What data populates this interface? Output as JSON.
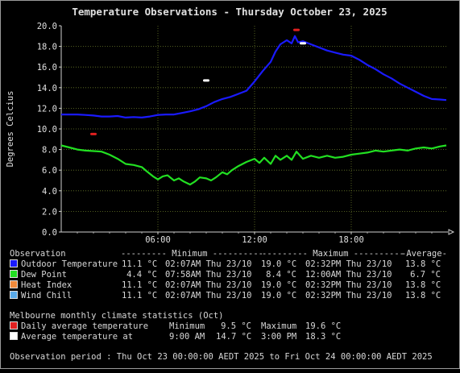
{
  "chart_data": {
    "type": "line",
    "title": "Temperature Observations - Thursday October 23, 2025",
    "ylabel": "Degrees Celcius",
    "xlabel": "",
    "ylim": [
      0,
      20
    ],
    "xlim_hours": [
      0,
      24
    ],
    "yticks": [
      "0.0",
      "2.0",
      "4.0",
      "6.0",
      "8.0",
      "10.0",
      "12.0",
      "14.0",
      "16.0",
      "18.0",
      "20.0"
    ],
    "xticks": [
      {
        "hour": 6,
        "label": "06:00"
      },
      {
        "hour": 12,
        "label": "12:00"
      },
      {
        "hour": 18,
        "label": "18:00"
      }
    ],
    "grid": true,
    "series": [
      {
        "name": "Outdoor Temperature",
        "color": "#1a1aff",
        "points": [
          [
            0,
            11.4
          ],
          [
            1,
            11.4
          ],
          [
            1.5,
            11.35
          ],
          [
            2,
            11.3
          ],
          [
            2.5,
            11.2
          ],
          [
            3,
            11.2
          ],
          [
            3.5,
            11.25
          ],
          [
            4,
            11.1
          ],
          [
            4.5,
            11.15
          ],
          [
            5,
            11.1
          ],
          [
            5.5,
            11.2
          ],
          [
            6,
            11.35
          ],
          [
            6.5,
            11.4
          ],
          [
            7,
            11.4
          ],
          [
            7.5,
            11.55
          ],
          [
            8,
            11.7
          ],
          [
            8.5,
            11.9
          ],
          [
            9,
            12.2
          ],
          [
            9.5,
            12.6
          ],
          [
            10,
            12.9
          ],
          [
            10.5,
            13.1
          ],
          [
            11,
            13.4
          ],
          [
            11.5,
            13.7
          ],
          [
            12,
            14.6
          ],
          [
            12.5,
            15.6
          ],
          [
            13,
            16.5
          ],
          [
            13.3,
            17.5
          ],
          [
            13.6,
            18.2
          ],
          [
            14,
            18.6
          ],
          [
            14.3,
            18.3
          ],
          [
            14.5,
            19.0
          ],
          [
            14.7,
            18.4
          ],
          [
            15,
            18.5
          ],
          [
            15.5,
            18.2
          ],
          [
            16,
            17.9
          ],
          [
            16.5,
            17.6
          ],
          [
            17,
            17.4
          ],
          [
            17.5,
            17.2
          ],
          [
            18,
            17.1
          ],
          [
            18.5,
            16.7
          ],
          [
            19,
            16.2
          ],
          [
            19.5,
            15.8
          ],
          [
            20,
            15.3
          ],
          [
            20.5,
            14.9
          ],
          [
            21,
            14.4
          ],
          [
            21.5,
            14.0
          ],
          [
            22,
            13.6
          ],
          [
            22.5,
            13.2
          ],
          [
            23,
            12.9
          ],
          [
            23.5,
            12.85
          ],
          [
            23.9,
            12.8
          ]
        ]
      },
      {
        "name": "Dew Point",
        "color": "#22e022",
        "points": [
          [
            0,
            8.4
          ],
          [
            0.5,
            8.2
          ],
          [
            1,
            8.0
          ],
          [
            1.5,
            7.9
          ],
          [
            2,
            7.85
          ],
          [
            2.5,
            7.8
          ],
          [
            3,
            7.5
          ],
          [
            3.5,
            7.1
          ],
          [
            4,
            6.6
          ],
          [
            4.5,
            6.5
          ],
          [
            5,
            6.3
          ],
          [
            5.3,
            5.9
          ],
          [
            5.7,
            5.4
          ],
          [
            6,
            5.1
          ],
          [
            6.3,
            5.4
          ],
          [
            6.6,
            5.5
          ],
          [
            7,
            5.0
          ],
          [
            7.3,
            5.2
          ],
          [
            7.6,
            4.9
          ],
          [
            8,
            4.6
          ],
          [
            8.3,
            4.9
          ],
          [
            8.6,
            5.3
          ],
          [
            9,
            5.2
          ],
          [
            9.3,
            5.0
          ],
          [
            9.6,
            5.3
          ],
          [
            10,
            5.8
          ],
          [
            10.3,
            5.6
          ],
          [
            10.6,
            6.0
          ],
          [
            11,
            6.4
          ],
          [
            11.5,
            6.8
          ],
          [
            12,
            7.1
          ],
          [
            12.3,
            6.7
          ],
          [
            12.6,
            7.2
          ],
          [
            13,
            6.6
          ],
          [
            13.3,
            7.4
          ],
          [
            13.6,
            7.0
          ],
          [
            14,
            7.4
          ],
          [
            14.3,
            7.0
          ],
          [
            14.6,
            7.8
          ],
          [
            15,
            7.1
          ],
          [
            15.5,
            7.4
          ],
          [
            16,
            7.2
          ],
          [
            16.5,
            7.4
          ],
          [
            17,
            7.2
          ],
          [
            17.5,
            7.3
          ],
          [
            18,
            7.5
          ],
          [
            18.5,
            7.6
          ],
          [
            19,
            7.7
          ],
          [
            19.5,
            7.9
          ],
          [
            20,
            7.8
          ],
          [
            20.5,
            7.9
          ],
          [
            21,
            8.0
          ],
          [
            21.5,
            7.9
          ],
          [
            22,
            8.1
          ],
          [
            22.5,
            8.2
          ],
          [
            23,
            8.1
          ],
          [
            23.5,
            8.3
          ],
          [
            23.9,
            8.4
          ]
        ]
      }
    ],
    "markers": [
      {
        "name": "Daily average temperature minimum",
        "hour": 2.0,
        "value": 9.5,
        "color": "#e02020"
      },
      {
        "name": "Daily average temperature maximum",
        "hour": 14.6,
        "value": 19.6,
        "color": "#e02020"
      },
      {
        "name": "Average temperature at 9:00 AM",
        "hour": 9.0,
        "value": 14.7,
        "color": "#ffffff"
      },
      {
        "name": "Average temperature at 3:00 PM",
        "hour": 15.0,
        "value": 18.3,
        "color": "#ffffff"
      }
    ]
  },
  "table": {
    "header": {
      "observation": "Observation",
      "minimum": "--------- Minimum ----------",
      "maximum": "--------- Maximum ----------",
      "average": "-Average-"
    },
    "rows": [
      {
        "label": "Outdoor Temperature",
        "color": "#1a1aff",
        "min_val": "11.1 °C",
        "min_time": "02:07AM Thu 23/10",
        "max_val": "19.0 °C",
        "max_time": "02:32PM Thu 23/10",
        "avg": "13.8 °C"
      },
      {
        "label": "Dew Point",
        "color": "#22e022",
        "min_val": "4.4 °C",
        "min_time": "07:58AM Thu 23/10",
        "max_val": "8.4 °C",
        "max_time": "12:00AM Thu 23/10",
        "avg": "6.7 °C"
      },
      {
        "label": "Heat Index",
        "color": "#f08a3c",
        "min_val": "11.1 °C",
        "min_time": "02:07AM Thu 23/10",
        "max_val": "19.0 °C",
        "max_time": "02:32PM Thu 23/10",
        "avg": "13.8 °C"
      },
      {
        "label": "Wind Chill",
        "color": "#5aaae8",
        "min_val": "11.1 °C",
        "min_time": "02:07AM Thu 23/10",
        "max_val": "19.0 °C",
        "max_time": "02:32PM Thu 23/10",
        "avg": "13.8 °C"
      }
    ]
  },
  "climate": {
    "title": "Melbourne monthly climate statistics (Oct)",
    "rows": [
      {
        "label": "Daily average temperature",
        "color": "#e02020",
        "min_label": "Minimum",
        "min_val": "9.5 °C",
        "max_label": "Maximum",
        "max_val": "19.6 °C"
      },
      {
        "label": "Average temperature at",
        "color": "#ffffff",
        "min_label": "9:00 AM",
        "min_val": "14.7 °C",
        "max_label": "3:00 PM",
        "max_val": "18.3 °C"
      }
    ]
  },
  "observation_period": "Observation period : Thu Oct 23 00:00:00 AEDT 2025 to Fri Oct 24 00:00:00 AEDT 2025"
}
